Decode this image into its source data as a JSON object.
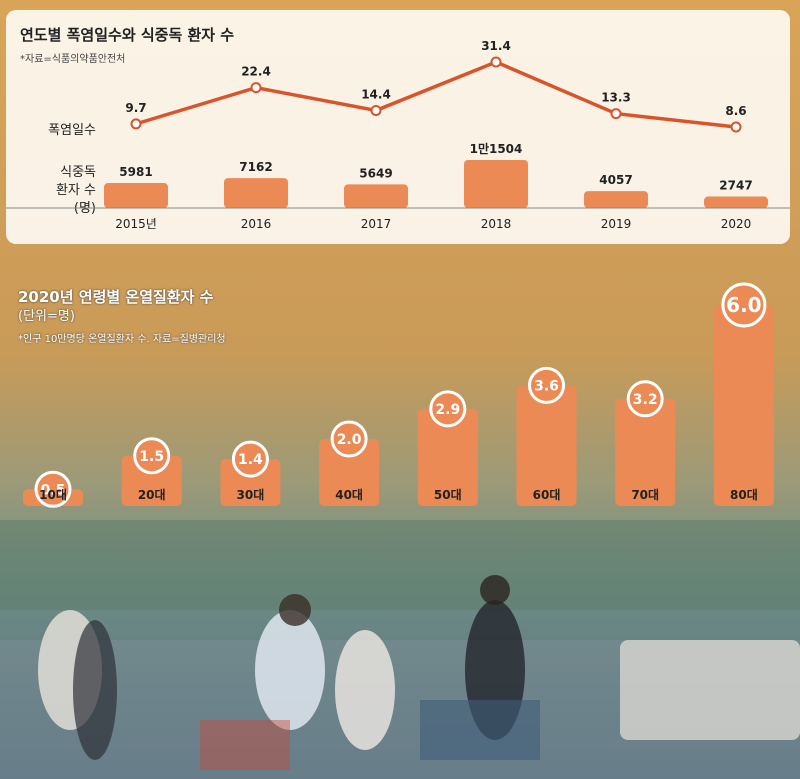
{
  "chart_data": [
    {
      "type": "bar",
      "title": "연도별 폭염일수와 식중독 환자 수",
      "note": "*자료=식품의약품안전처",
      "categories": [
        "2015년",
        "2016",
        "2017",
        "2018",
        "2019",
        "2020"
      ],
      "series": [
        {
          "name": "폭염일수",
          "type": "line",
          "values": [
            9.7,
            22.4,
            14.4,
            31.4,
            13.3,
            8.6
          ],
          "labels": [
            "9.7",
            "22.4",
            "14.4",
            "31.4",
            "13.3",
            "8.6"
          ]
        },
        {
          "name": "식중독 환자 수 (명)",
          "type": "bar",
          "values": [
            5981,
            7162,
            5649,
            11504,
            4057,
            2747
          ],
          "labels": [
            "5981",
            "7162",
            "5649",
            "1만1504",
            "4057",
            "2747"
          ]
        }
      ],
      "series_labels": {
        "line": "폭염일수",
        "bar_line1": "식중독",
        "bar_line2": "환자 수",
        "bar_line3": "(명)"
      },
      "colors": {
        "line": "#d9532b",
        "bar": "#ec8a55"
      }
    },
    {
      "type": "bar",
      "title": "2020년 연령별 온열질환자 수",
      "unit": "(단위=명)",
      "note": "*인구 10만명당 온열질환자 수. 자료=질병관리청",
      "categories": [
        "10대",
        "20대",
        "30대",
        "40대",
        "50대",
        "60대",
        "70대",
        "80대"
      ],
      "values": [
        0.5,
        1.5,
        1.4,
        2.0,
        2.9,
        3.6,
        3.2,
        6.0
      ],
      "labels": [
        "0.5",
        "1.5",
        "1.4",
        "2.0",
        "2.9",
        "3.6",
        "3.2",
        "6.0"
      ],
      "colors": {
        "bar": "#ec8a55"
      }
    }
  ]
}
